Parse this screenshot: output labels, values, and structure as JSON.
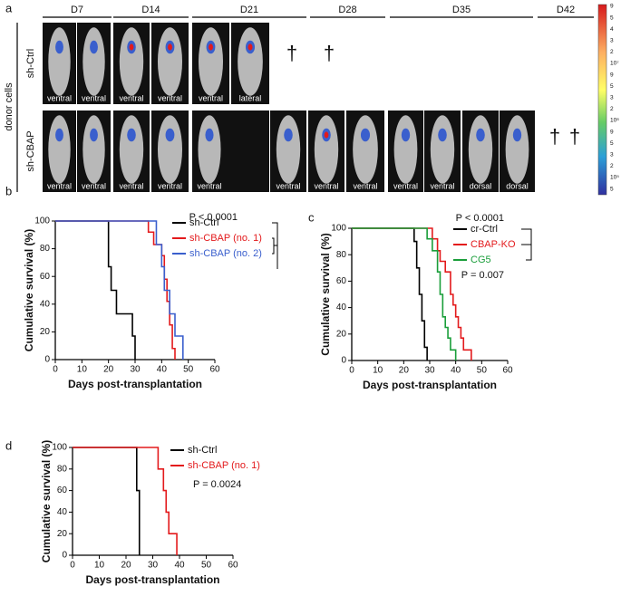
{
  "panel_a": {
    "letter": "a",
    "day_labels": [
      "D7",
      "D14",
      "D21",
      "D28",
      "D35",
      "D42"
    ],
    "row_labels": [
      "sh-Ctrl",
      "sh-CBAP"
    ],
    "group_label": "donor cells",
    "row1_views": [
      "ventral",
      "ventral",
      "ventral",
      "ventral",
      "ventral",
      "lateral"
    ],
    "row2_views": [
      "ventral",
      "ventral",
      "ventral",
      "ventral",
      "ventral",
      "ventral",
      "ventral",
      "ventral",
      "ventral",
      "ventral",
      "dorsal",
      "dorsal"
    ],
    "daggers": [
      "†",
      "†",
      "†",
      "†"
    ],
    "colorbar_labels": [
      "9",
      "5",
      "4",
      "3",
      "2",
      "10⁷",
      "9",
      "5",
      "3",
      "2",
      "10⁶",
      "9",
      "5",
      "3",
      "2",
      "10⁵",
      "5"
    ]
  },
  "chart_data": [
    {
      "type": "line",
      "step": true,
      "panel": "b",
      "xlabel": "Days post-transplantation",
      "ylabel": "Cumulative survival (%)",
      "xlim": [
        0,
        60
      ],
      "ylim": [
        0,
        100
      ],
      "xticks": [
        0,
        10,
        20,
        30,
        40,
        50,
        60
      ],
      "yticks": [
        0,
        20,
        40,
        60,
        80,
        100
      ],
      "annotations": [
        "P < 0.0001"
      ],
      "series": [
        {
          "name": "sh-Ctrl",
          "color": "#000000",
          "x": [
            0,
            20,
            21,
            23,
            25,
            29,
            30
          ],
          "values": [
            100,
            67,
            50,
            33,
            33,
            17,
            0
          ]
        },
        {
          "name": "sh-CBAP (no. 1)",
          "color": "#e31a1c",
          "x": [
            0,
            35,
            37,
            40,
            41,
            42,
            43,
            44,
            45
          ],
          "values": [
            100,
            92,
            83,
            75,
            58,
            42,
            25,
            8,
            0
          ]
        },
        {
          "name": "sh-CBAP (no. 2)",
          "color": "#3a5fcd",
          "x": [
            0,
            37,
            38,
            40,
            41,
            43,
            45,
            48
          ],
          "values": [
            100,
            100,
            83,
            67,
            50,
            33,
            17,
            0
          ]
        }
      ]
    },
    {
      "type": "line",
      "step": true,
      "panel": "c",
      "xlabel": "Days post-transplantation",
      "ylabel": "Cumulative survival (%)",
      "xlim": [
        0,
        60
      ],
      "ylim": [
        0,
        100
      ],
      "xticks": [
        0,
        10,
        20,
        30,
        40,
        50,
        60
      ],
      "yticks": [
        0,
        20,
        40,
        60,
        80,
        100
      ],
      "annotations": [
        "P < 0.0001",
        "P = 0.007"
      ],
      "series": [
        {
          "name": "cr-Ctrl",
          "color": "#000000",
          "x": [
            0,
            24,
            25,
            26,
            27,
            28,
            29
          ],
          "values": [
            100,
            90,
            70,
            50,
            30,
            10,
            0
          ]
        },
        {
          "name": "CBAP-KO",
          "color": "#e31a1c",
          "x": [
            0,
            31,
            33,
            34,
            36,
            38,
            39,
            40,
            41,
            42,
            43,
            46
          ],
          "values": [
            100,
            92,
            83,
            75,
            67,
            50,
            42,
            33,
            25,
            17,
            8,
            0
          ]
        },
        {
          "name": "CG5",
          "color": "#1a9e3a",
          "x": [
            0,
            29,
            31,
            33,
            34,
            35,
            36,
            37,
            38,
            40
          ],
          "values": [
            100,
            92,
            83,
            67,
            50,
            33,
            25,
            17,
            8,
            0
          ]
        }
      ]
    },
    {
      "type": "line",
      "step": true,
      "panel": "d",
      "xlabel": "Days post-transplantation",
      "ylabel": "Cumulative survival (%)",
      "xlim": [
        0,
        60
      ],
      "ylim": [
        0,
        100
      ],
      "xticks": [
        0,
        10,
        20,
        30,
        40,
        50,
        60
      ],
      "yticks": [
        0,
        20,
        40,
        60,
        80,
        100
      ],
      "annotations": [
        "P = 0.0024"
      ],
      "series": [
        {
          "name": "sh-Ctrl",
          "color": "#000000",
          "x": [
            0,
            24,
            25
          ],
          "values": [
            100,
            60,
            0
          ]
        },
        {
          "name": "sh-CBAP (no. 1)",
          "color": "#e31a1c",
          "x": [
            0,
            32,
            34,
            35,
            36,
            39
          ],
          "values": [
            100,
            80,
            60,
            40,
            20,
            0
          ]
        }
      ]
    }
  ]
}
